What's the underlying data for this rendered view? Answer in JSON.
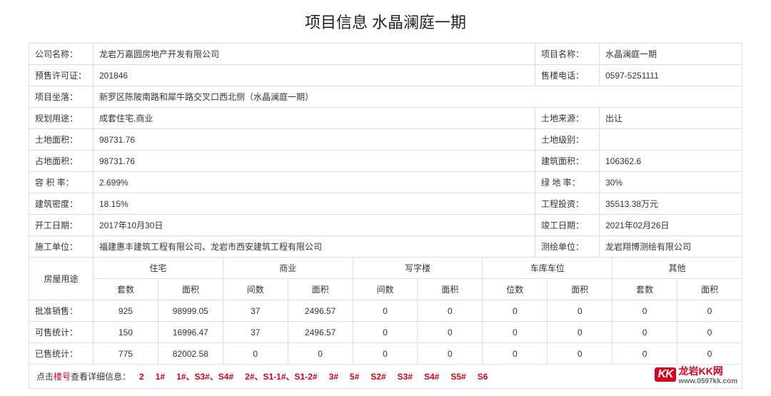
{
  "title": "项目信息 水晶澜庭一期",
  "info": {
    "company_lbl": "公司名称：",
    "company": "龙岩万嘉圆房地产开发有限公司",
    "project_lbl": "项目名称：",
    "project": "水晶澜庭一期",
    "permit_lbl": "预售许可证：",
    "permit": "201846",
    "phone_lbl": "售楼电话：",
    "phone": "0597-5251111",
    "location_lbl": "项目坐落：",
    "location": "新罗区陈陂南路和犀牛路交叉口西北侧（水晶澜庭一期）",
    "planuse_lbl": "规划用途：",
    "planuse": "成套住宅,商业",
    "landsrc_lbl": "土地来源：",
    "landsrc": "出让",
    "landarea_lbl": "土地面积：",
    "landarea": "98731.76",
    "landgrade_lbl": "土地级别：",
    "landgrade": "",
    "sitearea_lbl": "占地面积：",
    "sitearea": "98731.76",
    "buildarea_lbl": "建筑面积：",
    "buildarea": "106362.6",
    "far_lbl": "容 积 率：",
    "far": "2.699%",
    "green_lbl": "绿 地 率：",
    "green": "30%",
    "density_lbl": "建筑密度：",
    "density": "18.15%",
    "invest_lbl": "工程投资：",
    "invest": "35513.38万元",
    "start_lbl": "开工日期：",
    "start": "2017年10月30日",
    "end_lbl": "竣工日期：",
    "end": "2021年02月26日",
    "builder_lbl": "施工单位：",
    "builder": "福建惠丰建筑工程有限公司、龙岩市西安建筑工程有限公司",
    "survey_lbl": "测绘单位：",
    "survey": "龙岩翔博测绘有限公司"
  },
  "usage": {
    "rowhead": "房屋用途",
    "groups": [
      "住宅",
      "商业",
      "写字楼",
      "车库车位",
      "其他"
    ],
    "sub_a": [
      "套数",
      "间数",
      "间数",
      "位数",
      "套数"
    ],
    "sub_b": "面积",
    "rows": [
      {
        "label": "批准销售：",
        "cells": [
          "925",
          "98999.05",
          "37",
          "2496.57",
          "0",
          "0",
          "0",
          "0",
          "0",
          "0"
        ]
      },
      {
        "label": "可售统计：",
        "cells": [
          "150",
          "16996.47",
          "37",
          "2496.57",
          "0",
          "0",
          "0",
          "0",
          "0",
          "0"
        ]
      },
      {
        "label": "已售统计：",
        "cells": [
          "775",
          "82002.58",
          "0",
          "0",
          "0",
          "0",
          "0",
          "0",
          "0",
          "0"
        ]
      }
    ]
  },
  "footer": {
    "lead_a": "点击",
    "lead_b": "楼号",
    "lead_c": "查看详细信息：",
    "links": [
      "2",
      "1#",
      "1#、S3#、S4#",
      "2#、S1-1#、S1-2#",
      "3#",
      "5#",
      "S2#",
      "S3#",
      "S4#",
      "S5#",
      "S6"
    ]
  },
  "logo": {
    "kk": "KK",
    "name": "龙岩KK网",
    "url": "www.0597kk.com"
  },
  "colors": {
    "border": "#dddddd",
    "red": "#d9001b",
    "text": "#333333"
  },
  "col_widths": {
    "label_col": "90px",
    "half_val": "auto"
  }
}
